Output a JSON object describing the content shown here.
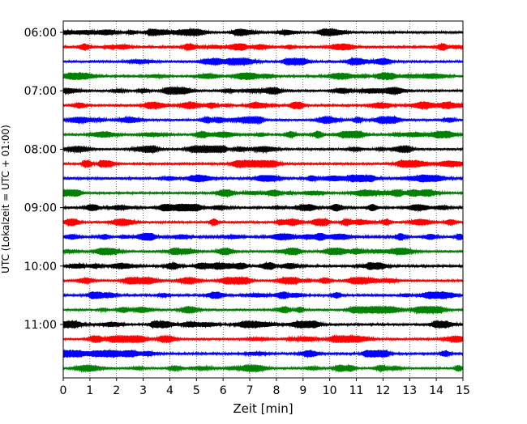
{
  "chart_data": {
    "type": "line",
    "title": "",
    "xlabel": "Zeit  [min]",
    "ylabel": "UTC (Lokalzeit = UTC + 01:00)",
    "xlim": [
      0,
      15
    ],
    "x_ticks": [
      "0",
      "1",
      "2",
      "3",
      "4",
      "5",
      "6",
      "7",
      "8",
      "9",
      "10",
      "11",
      "12",
      "13",
      "14",
      "15"
    ],
    "y_ticks": [
      "06:00",
      "07:00",
      "08:00",
      "09:00",
      "10:00",
      "11:00"
    ],
    "grid": "vertical dotted lines at each minute",
    "trace_interval_minutes": 15,
    "trace_colors": [
      "#000000",
      "#ff0000",
      "#0000ff",
      "#008000"
    ],
    "traces": [
      {
        "start": "06:00",
        "color": "#000000"
      },
      {
        "start": "06:15",
        "color": "#ff0000"
      },
      {
        "start": "06:30",
        "color": "#0000ff"
      },
      {
        "start": "06:45",
        "color": "#008000"
      },
      {
        "start": "07:00",
        "color": "#000000"
      },
      {
        "start": "07:15",
        "color": "#ff0000"
      },
      {
        "start": "07:30",
        "color": "#0000ff"
      },
      {
        "start": "07:45",
        "color": "#008000"
      },
      {
        "start": "08:00",
        "color": "#000000"
      },
      {
        "start": "08:15",
        "color": "#ff0000"
      },
      {
        "start": "08:30",
        "color": "#0000ff"
      },
      {
        "start": "08:45",
        "color": "#008000"
      },
      {
        "start": "09:00",
        "color": "#000000"
      },
      {
        "start": "09:15",
        "color": "#ff0000"
      },
      {
        "start": "09:30",
        "color": "#0000ff"
      },
      {
        "start": "09:45",
        "color": "#008000"
      },
      {
        "start": "10:00",
        "color": "#000000"
      },
      {
        "start": "10:15",
        "color": "#ff0000"
      },
      {
        "start": "10:30",
        "color": "#0000ff"
      },
      {
        "start": "10:45",
        "color": "#008000"
      },
      {
        "start": "11:00",
        "color": "#000000"
      },
      {
        "start": "11:15",
        "color": "#ff0000"
      },
      {
        "start": "11:30",
        "color": "#0000ff"
      },
      {
        "start": "11:45",
        "color": "#008000"
      }
    ]
  }
}
